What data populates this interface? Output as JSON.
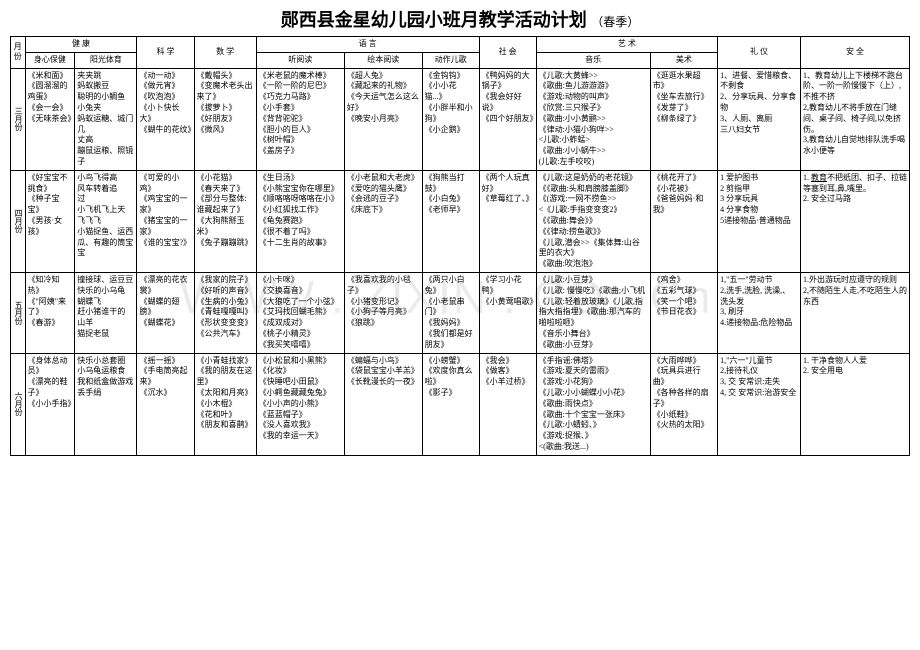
{
  "title_main": "郧西县金星幼儿园小班月教学活动计划",
  "title_sub": "（春季）",
  "headers": {
    "month": "月份",
    "health": "健 康",
    "science": "科  学",
    "math": "数  学",
    "language": "语  言",
    "social": "社  会",
    "art": "艺  术",
    "etiquette": "礼  仪",
    "safety": "安  全",
    "body": "身心保健",
    "sun": "阳光体育",
    "listen": "听阅读",
    "picture": "绘本阅读",
    "song": "动作儿歌",
    "music": "音乐",
    "fine": "美术"
  },
  "rows": [
    {
      "month": "三月份",
      "body": "《米和面》\n《圆溜溜的鸡蛋》\n《会一会》\n《无味茶会》",
      "sun": "夹夹跳\n蚂蚁搬豆\n聪明的小鲷鱼\n小兔夹\n蚂蚁运糖、城门几\n丈高\n蹦鼠运粮、照镜子",
      "science": "《动一动》\n《做元宵》\n《吹泡泡》\n《小卜快长大》\n《蝴牛的花纹》",
      "math": "《戴帽头》\n《变魔术老头出来了》\n《拔萝卜》\n《好朋友》\n《微风》",
      "listen": "《米老鼠的魔术棒》\n《一阶一阶的尼巴》\n《巧克力马路》\n《小手套》\n《背背驼驼》\n《胆小的巨人》\n《树叶帽》\n《盖房子》",
      "picture": "《超人兔》\n《藏起来的礼物》\n《今天运气怎么这么好》\n《晚安小月亮》",
      "song": "《金钩钩》\n《小小花猫...》\n《小胖半和小狗》\n《小企鹅》",
      "social": "《鸭妈妈的大锅子》\n《我会好好说》\n《四个好朋友》",
      "music": "《儿歌:大黄蜂>>\n《歌曲:鱼儿游游游》\n《游戏:动物的叫声》\n《欣赏:三只猴子》\n《歌曲:小小黄鹂>>\n《律动:小猫小狗咩>>\n<儿歌:小蚱蜢>\n《歌曲:小小蜗牛>>\n(儿歌:左手咬咬)",
      "fine": "《逛逛水果超市》\n《坐车去旅行》\n《发芽了》\n《柳条绿了》",
      "etiquette": "1、进餐、爱惜粮食、不剩食\n2、分享玩具、分享食物\n3、人厕、离厕\n三八妇女节",
      "safety": "1、教育幼儿上下楼梯不跑台阶、一阶一阶慢慢下（上）,不推不挤\n2,教育幼儿不将手放在门缝间、桌子间、椅子间,以免挤伤。\n3,教育幼儿自觉地排队洗手喝水小便等"
    },
    {
      "month": "四月份",
      "body": "《好宝宝不挑食》\n《种子宝宝》\n《男孩·女孩》",
      "sun": "小鸟飞得高\n风车转着追\n过\n小飞机飞上天\n飞飞飞\n小猫捉鱼、运西瓜、有趣的筒宝宝",
      "science": "《可爱的小鸡》\n《鸡宝宝的一家》\n《猪宝宝的一家》\n《谁的宝宝?》",
      "math": "《小花猫》\n《春天来了》\n《部分与整体:谁藏起来了》\n《大狗熊掰玉米》\n《兔子蹦蹦跳》",
      "listen": "《生日汤》\n《小熊宝宝你在哪里》\n《顺咯咯呀咯咯在小》\n《小红狐找工作》\n《龟兔赛跑》\n《很不着了吗》\n《十二生肖的故事》",
      "picture": "《小老鼠和大老虎》\n《爱吃的猫头鹰》\n《会逃的豆子》\n《床底下》",
      "song": "《狗熊当打鼓》\n《小白兔》\n《老师早》",
      "social": "《两个人玩真好》\n《草莓红了、》",
      "music": "《儿歌:这是奶奶的老花镜》\n《《歌曲:头和肩膀膝盖脚》\n《(游戏:一网不捞鱼>>\n<《儿歌:手指变变变2》\n《《歌曲:舞会》》\n《《律动:捞鱼歌》》\n《儿歌,潜会>>《集体舞:山谷里的衣大》\n《歌曲:吹泡泡》",
      "fine": "《桃花开了》\n《小花被》\n《爸爸妈妈·和我》",
      "etiquette": "1 爱护图书\n2 剪指甲\n3 分享玩具\n4 分享食物\n5递接物品·普通物品",
      "safety": "1. 教育不把纸团、扣子、拉链等塞到耳,鼻,嘴里。\n2. 安全过马路"
    },
    {
      "month": "五月份",
      "body": "《知冷知热》\n《\"阿姨\"来了》\n《春游》",
      "sun": "撞接球、运豆豆\n快乐的小乌龟\n蝴蝶飞\n赶小猪谁干的\n山羊\n猫捉老鼠",
      "science": "《漂亮的花衣裳》\n《蝴蝶的翅膀》\n《蝴蝶花》",
      "math": "《我家的院子》\n《好听的声音》\n《生病的小兔》\n《青蛙嘎嘎叫》\n《形状变变变》\n《公共汽车》",
      "listen": "《小卡咪》\n《交换喜音》\n《大狼吃了一个小弦》《艾玛找回蝴毛熊》\n《成双成对》\n《桃子小精灵》\n《我买笑嘻嘻》",
      "picture": "《我喜欢我的小毯子》\n《小猪变形记》\n《小狗子等月亮》\n《狼跳》",
      "song": "《两只小白兔》\n《小老鼠串门》\n《我妈妈》\n《我们都是好朋友》",
      "social": "《学习小花鸭》\n《小黄莺唱歌》",
      "music": "《儿歌:小豆芽》\n《儿歌: 慢慢吃》《歌曲;小飞机《儿歌:轻着放玻璃》《儿歌,指指大指指埋》《歌曲:那汽车的啪啦啦咂》\n《音乐小舞台》\n《歌曲:小豆芽》",
      "fine": "《鸡舍》\n《五彩气球》\n《笑一个吧》\n《节日花衣》",
      "etiquette": "1,\"五一\"劳动节\n2,洗手,洗脸, 洗澡,、洗头发\n3, 刷牙\n4.递接物品:危险物品",
      "safety": "1.外出游玩时应遵守的规则\n2,不随陌生人走,不吃陌生人的东西"
    },
    {
      "month": "六月份",
      "body": "《身体总动员》\n《漂亮的鞋子》\n《小小手指》",
      "sun": "快乐小总套圈\n小乌龟运粮食\n我和纸盒做游戏\n丢手绢",
      "science": "《摇一摇》\n《手电筒亮起来》\n《沉水》",
      "math": "《小青蛙找家》\n《我的朋友在这里》\n《太阳和月亮》\n《小木棍》\n《花和叶》\n《朋友和喜鹊》",
      "listen": "《小松鼠和小黑熊》\n《化妆》\n《快睡吧小田鼠》\n《小鳄鱼藏藏兔兔》\n《小小声的小熊》\n《蓝蓝帽子》\n《没人喜欢我》\n《我的幸运一天》",
      "picture": "《蝙蝠与小鸟》\n《袋鼠宝宝小羊羔》\n《长靴漫长的一夜》",
      "song": "《小螃蟹》\n《欢度你真么啦》\n《影子》",
      "social": "《我会》\n《做客》\n《小羊过桥》",
      "music": "《手指谣:佛塔》\n《游戏:夏天的雷雨》\n《游戏:小花狗》\n《儿歌:小小蝴蝶小小花》\n《歌曲:雨快点》\n《歌曲:十个宝宝一张床》\n《儿歌:小蜻蚓、》\n《游戏:捉猴、》\n<(歌曲:我送...)",
      "fine": "《大雨哗哗》\n《玩具兵进行曲》\n《各种各样的扇子》\n《小纸鞋》\n《火热的太阳》",
      "etiquette": "1,\"六一\"儿童节\n2,接待礼仪\n3, 交 安常识:走失\n4, 交 安常识:治游安全",
      "safety": "1. 干净食物人人爱\n2. 安全用电"
    }
  ],
  "watermark": "WWW . ZIXIN . CO . Cn"
}
